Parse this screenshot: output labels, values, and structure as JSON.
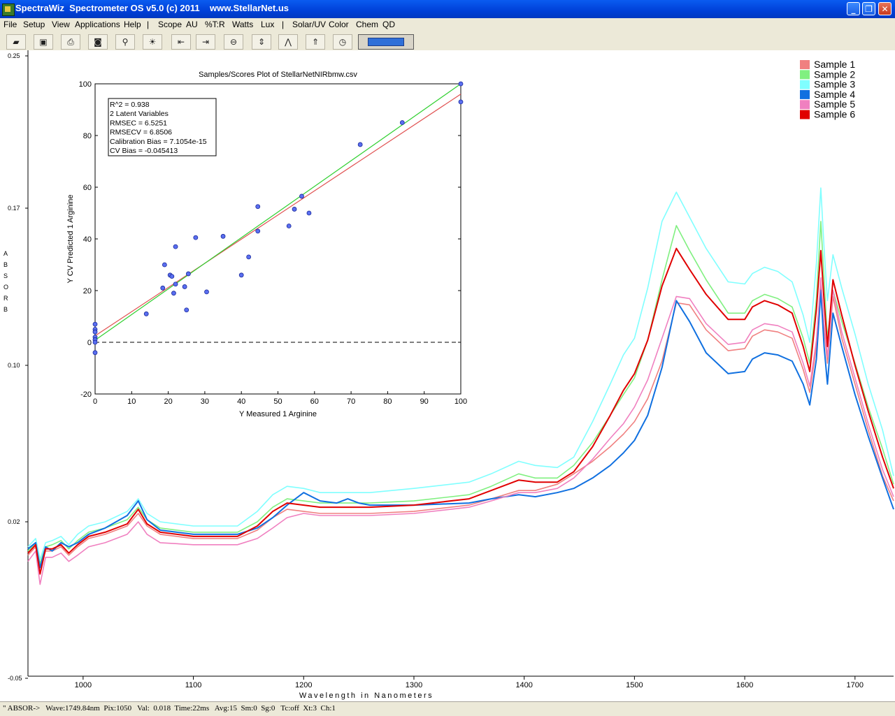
{
  "window": {
    "title": "SpectraWiz  Spectrometer OS v5.0 (c) 2011    www.StellarNet.us",
    "minimize_icon": "minimize-icon",
    "maximize_icon": "maximize-icon",
    "close_icon": "close-icon"
  },
  "menu": [
    "File",
    "Setup",
    "View",
    "Applications",
    "Help",
    "|",
    "Scope",
    "AU",
    "%T:R",
    "Watts",
    "Lux",
    "|",
    "Solar/UV",
    "Color",
    "Chem",
    "QD"
  ],
  "toolbar": {
    "icons": [
      "open-file-icon",
      "save-icon",
      "print-icon",
      "camera-icon",
      "lamp-icon",
      "bulb-icon",
      "left-limit-icon",
      "right-limit-icon",
      "zoom-out-icon",
      "autoscale-icon",
      "peak-icon",
      "baseline-icon",
      "clock-icon"
    ]
  },
  "status": {
    "text": "\" ABSOR->   Wave:1749.84nm  Pix:1050   Val:  0.018  Time:22ms   Avg:15  Sm:0  Sg:0   Tc:off  Xt:3  Ch:1"
  },
  "chart_data": [
    {
      "type": "line",
      "xlabel": "Wavelength in Nanometers",
      "ylabel": "ABSORB",
      "xlim": [
        950,
        1735
      ],
      "ylim": [
        -0.05,
        0.25
      ],
      "x_ticks": [
        1000,
        1100,
        1200,
        1300,
        1400,
        1500,
        1600,
        1700
      ],
      "y_tick_labels": [
        "0.25",
        "0.17",
        "0.10",
        "0.02",
        "-0.05"
      ],
      "legend_position": "top-right",
      "colors": [
        "#f08080",
        "#80f080",
        "#80ffff",
        "#1070e0",
        "#f080c0",
        "#e00000"
      ],
      "x": [
        950,
        957,
        961,
        966,
        972,
        980,
        987,
        995,
        1005,
        1020,
        1040,
        1050,
        1058,
        1070,
        1100,
        1120,
        1140,
        1158,
        1172,
        1185,
        1200,
        1215,
        1230,
        1240,
        1250,
        1260,
        1300,
        1350,
        1370,
        1395,
        1410,
        1430,
        1445,
        1462,
        1478,
        1490,
        1500,
        1512,
        1525,
        1538,
        1550,
        1565,
        1585,
        1600,
        1607,
        1618,
        1630,
        1643,
        1653,
        1659,
        1665,
        1669,
        1672,
        1675,
        1680,
        1688,
        1700,
        1712,
        1725,
        1735
      ],
      "series": [
        {
          "name": "Sample 1",
          "values": [
            0.008,
            0.012,
            0.002,
            0.01,
            0.01,
            0.012,
            0.008,
            0.012,
            0.016,
            0.018,
            0.022,
            0.028,
            0.022,
            0.018,
            0.016,
            0.016,
            0.016,
            0.02,
            0.026,
            0.03,
            0.029,
            0.028,
            0.028,
            0.028,
            0.028,
            0.028,
            0.029,
            0.032,
            0.035,
            0.039,
            0.039,
            0.042,
            0.047,
            0.053,
            0.06,
            0.066,
            0.072,
            0.083,
            0.101,
            0.129,
            0.128,
            0.116,
            0.106,
            0.107,
            0.113,
            0.116,
            0.115,
            0.112,
            0.097,
            0.086,
            0.108,
            0.138,
            0.116,
            0.1,
            0.132,
            0.112,
            0.09,
            0.068,
            0.046,
            0.034
          ]
        },
        {
          "name": "Sample 2",
          "values": [
            0.01,
            0.014,
            0.004,
            0.012,
            0.013,
            0.015,
            0.011,
            0.015,
            0.019,
            0.021,
            0.025,
            0.031,
            0.025,
            0.021,
            0.019,
            0.019,
            0.019,
            0.024,
            0.031,
            0.035,
            0.034,
            0.033,
            0.033,
            0.033,
            0.033,
            0.033,
            0.034,
            0.037,
            0.041,
            0.047,
            0.045,
            0.045,
            0.051,
            0.062,
            0.075,
            0.085,
            0.093,
            0.111,
            0.14,
            0.166,
            0.154,
            0.14,
            0.124,
            0.124,
            0.13,
            0.133,
            0.131,
            0.127,
            0.112,
            0.1,
            0.131,
            0.168,
            0.14,
            0.112,
            0.135,
            0.12,
            0.1,
            0.079,
            0.059,
            0.042
          ]
        },
        {
          "name": "Sample 3",
          "values": [
            0.012,
            0.016,
            0.006,
            0.014,
            0.015,
            0.017,
            0.013,
            0.018,
            0.022,
            0.024,
            0.029,
            0.035,
            0.028,
            0.024,
            0.022,
            0.022,
            0.022,
            0.029,
            0.037,
            0.041,
            0.04,
            0.038,
            0.038,
            0.038,
            0.038,
            0.038,
            0.04,
            0.043,
            0.047,
            0.053,
            0.051,
            0.05,
            0.055,
            0.072,
            0.09,
            0.104,
            0.112,
            0.136,
            0.168,
            0.182,
            0.17,
            0.155,
            0.139,
            0.138,
            0.143,
            0.146,
            0.144,
            0.139,
            0.123,
            0.11,
            0.148,
            0.184,
            0.155,
            0.13,
            0.152,
            0.136,
            0.114,
            0.09,
            0.068,
            0.046
          ]
        },
        {
          "name": "Sample 4",
          "values": [
            0.011,
            0.014,
            0.002,
            0.012,
            0.01,
            0.014,
            0.012,
            0.014,
            0.018,
            0.021,
            0.027,
            0.034,
            0.025,
            0.02,
            0.018,
            0.018,
            0.018,
            0.021,
            0.026,
            0.032,
            0.038,
            0.034,
            0.033,
            0.035,
            0.033,
            0.032,
            0.032,
            0.033,
            0.035,
            0.037,
            0.036,
            0.038,
            0.04,
            0.045,
            0.051,
            0.057,
            0.063,
            0.075,
            0.098,
            0.13,
            0.12,
            0.105,
            0.095,
            0.096,
            0.102,
            0.105,
            0.104,
            0.101,
            0.09,
            0.08,
            0.102,
            0.135,
            0.108,
            0.09,
            0.124,
            0.108,
            0.085,
            0.065,
            0.045,
            0.03
          ]
        },
        {
          "name": "Sample 5",
          "values": [
            0.005,
            0.01,
            -0.006,
            0.007,
            0.007,
            0.009,
            0.005,
            0.008,
            0.012,
            0.014,
            0.018,
            0.024,
            0.018,
            0.014,
            0.013,
            0.013,
            0.013,
            0.016,
            0.021,
            0.026,
            0.028,
            0.027,
            0.027,
            0.027,
            0.027,
            0.027,
            0.028,
            0.031,
            0.034,
            0.038,
            0.038,
            0.04,
            0.045,
            0.054,
            0.064,
            0.071,
            0.079,
            0.092,
            0.112,
            0.132,
            0.131,
            0.119,
            0.109,
            0.11,
            0.116,
            0.119,
            0.118,
            0.115,
            0.1,
            0.089,
            0.111,
            0.141,
            0.119,
            0.103,
            0.135,
            0.115,
            0.093,
            0.071,
            0.049,
            0.036
          ]
        },
        {
          "name": "Sample 6",
          "values": [
            0.009,
            0.013,
            -0.001,
            0.011,
            0.011,
            0.013,
            0.009,
            0.013,
            0.017,
            0.019,
            0.023,
            0.03,
            0.023,
            0.019,
            0.017,
            0.017,
            0.017,
            0.022,
            0.029,
            0.033,
            0.032,
            0.031,
            0.031,
            0.031,
            0.031,
            0.031,
            0.032,
            0.035,
            0.039,
            0.044,
            0.043,
            0.043,
            0.048,
            0.06,
            0.075,
            0.087,
            0.095,
            0.111,
            0.137,
            0.155,
            0.145,
            0.133,
            0.121,
            0.121,
            0.127,
            0.13,
            0.128,
            0.124,
            0.108,
            0.096,
            0.126,
            0.154,
            0.13,
            0.108,
            0.14,
            0.123,
            0.099,
            0.077,
            0.055,
            0.04
          ]
        }
      ]
    },
    {
      "type": "scatter",
      "title": "Samples/Scores Plot of StellarNetNIRbmw.csv",
      "xlabel": "Y Measured 1 Arginine",
      "ylabel": "Y CV Predicted 1 Arginine",
      "xlim": [
        0,
        100
      ],
      "ylim": [
        -20,
        100
      ],
      "x_ticks": [
        0,
        10,
        20,
        30,
        40,
        50,
        60,
        70,
        80,
        90,
        100
      ],
      "y_ticks": [
        -20,
        0,
        20,
        40,
        60,
        80,
        100
      ],
      "stats": [
        "R^2 = 0.938",
        "2 Latent Variables",
        "RMSEC = 6.5251",
        "RMSECV = 6.8506",
        "Calibration Bias = 7.1054e-15",
        "CV Bias = -0.045413"
      ],
      "points": [
        [
          0,
          7
        ],
        [
          0,
          5
        ],
        [
          0,
          4
        ],
        [
          0,
          2
        ],
        [
          0,
          1
        ],
        [
          0,
          0
        ],
        [
          0,
          -4
        ],
        [
          14,
          11
        ],
        [
          18.5,
          21
        ],
        [
          19,
          30
        ],
        [
          20.5,
          26
        ],
        [
          21,
          25.5
        ],
        [
          21.5,
          19
        ],
        [
          22,
          22.5
        ],
        [
          22,
          37
        ],
        [
          24.5,
          21.5
        ],
        [
          25,
          12.5
        ],
        [
          25.5,
          26.5
        ],
        [
          27.5,
          40.5
        ],
        [
          30.5,
          19.5
        ],
        [
          35,
          41
        ],
        [
          40,
          26
        ],
        [
          42,
          33
        ],
        [
          44.5,
          43
        ],
        [
          44.5,
          52.5
        ],
        [
          53,
          45
        ],
        [
          54.5,
          51.5
        ],
        [
          56.5,
          56.5
        ],
        [
          58.5,
          50
        ],
        [
          72.5,
          76.5
        ],
        [
          84,
          85
        ],
        [
          100,
          100
        ],
        [
          100,
          93
        ]
      ],
      "fit_lines": [
        {
          "color": "#e05050",
          "from": [
            0,
            2.5
          ],
          "to": [
            100,
            96
          ]
        },
        {
          "color": "#30d030",
          "from": [
            0,
            0.8
          ],
          "to": [
            100,
            100
          ]
        }
      ],
      "zero_line": 0
    }
  ]
}
